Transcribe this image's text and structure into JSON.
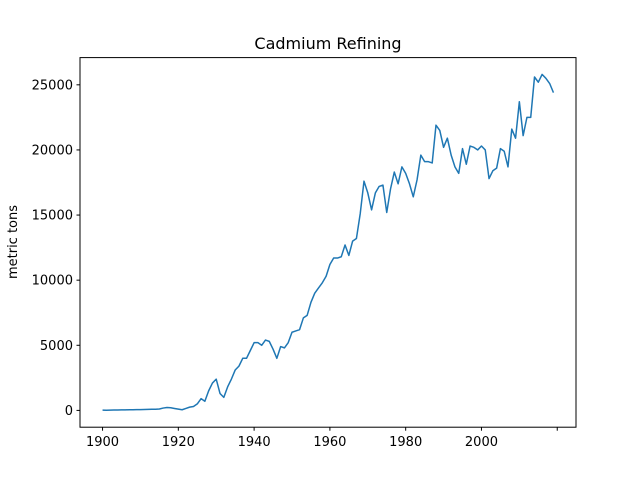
{
  "chart_data": {
    "type": "line",
    "title": "Cadmium Refining",
    "ylabel": "metric tons",
    "x": [
      1900,
      1901,
      1902,
      1903,
      1904,
      1905,
      1906,
      1907,
      1908,
      1909,
      1910,
      1911,
      1912,
      1913,
      1914,
      1915,
      1916,
      1917,
      1918,
      1919,
      1920,
      1921,
      1922,
      1923,
      1924,
      1925,
      1926,
      1927,
      1928,
      1929,
      1930,
      1931,
      1932,
      1933,
      1934,
      1935,
      1936,
      1937,
      1938,
      1939,
      1940,
      1941,
      1942,
      1943,
      1944,
      1945,
      1946,
      1947,
      1948,
      1949,
      1950,
      1951,
      1952,
      1953,
      1954,
      1955,
      1956,
      1957,
      1958,
      1959,
      1960,
      1961,
      1962,
      1963,
      1964,
      1965,
      1966,
      1967,
      1968,
      1969,
      1970,
      1971,
      1972,
      1973,
      1974,
      1975,
      1976,
      1977,
      1978,
      1979,
      1980,
      1981,
      1982,
      1983,
      1984,
      1985,
      1986,
      1987,
      1988,
      1989,
      1990,
      1991,
      1992,
      1993,
      1994,
      1995,
      1996,
      1997,
      1998,
      1999,
      2000,
      2001,
      2002,
      2003,
      2004,
      2005,
      2006,
      2007,
      2008,
      2009,
      2010,
      2011,
      2012,
      2013,
      2014,
      2015,
      2016,
      2017,
      2018,
      2019
    ],
    "series": [
      {
        "name": "Cadmium",
        "color": "#1f77b4",
        "values": [
          20,
          15,
          25,
          30,
          30,
          40,
          40,
          50,
          45,
          55,
          60,
          70,
          80,
          90,
          90,
          110,
          180,
          220,
          200,
          150,
          100,
          50,
          150,
          250,
          300,
          500,
          900,
          700,
          1500,
          2100,
          2400,
          1300,
          1000,
          1800,
          2400,
          3100,
          3400,
          4000,
          4000,
          4600,
          5200,
          5200,
          5000,
          5400,
          5300,
          4700,
          4000,
          4900,
          4800,
          5200,
          6000,
          6100,
          6200,
          7100,
          7300,
          8300,
          9000,
          9400,
          9800,
          10300,
          11200,
          11700,
          11700,
          11800,
          12700,
          11900,
          13000,
          13200,
          15100,
          17600,
          16700,
          15400,
          16700,
          17200,
          17300,
          15200,
          17000,
          18300,
          17400,
          18700,
          18200,
          17400,
          16400,
          17700,
          19600,
          19100,
          19100,
          19000,
          21900,
          21500,
          20200,
          20900,
          19600,
          18700,
          18200,
          20100,
          18900,
          20300,
          20200,
          20000,
          20300,
          20000,
          17800,
          18400,
          18600,
          20100,
          19900,
          18700,
          21600,
          20900,
          23700,
          21100,
          22500,
          22500,
          25600,
          25200,
          25800,
          25500,
          25100,
          24400
        ]
      }
    ],
    "xlim": [
      1894.05,
      2024.95
    ],
    "ylim": [
      -1290,
      27090
    ],
    "xticks": [
      1900,
      1920,
      1940,
      1960,
      1980,
      2000,
      {
        "value": 2020,
        "label": null
      }
    ],
    "yticks": [
      0,
      5000,
      10000,
      15000,
      20000,
      25000
    ]
  }
}
